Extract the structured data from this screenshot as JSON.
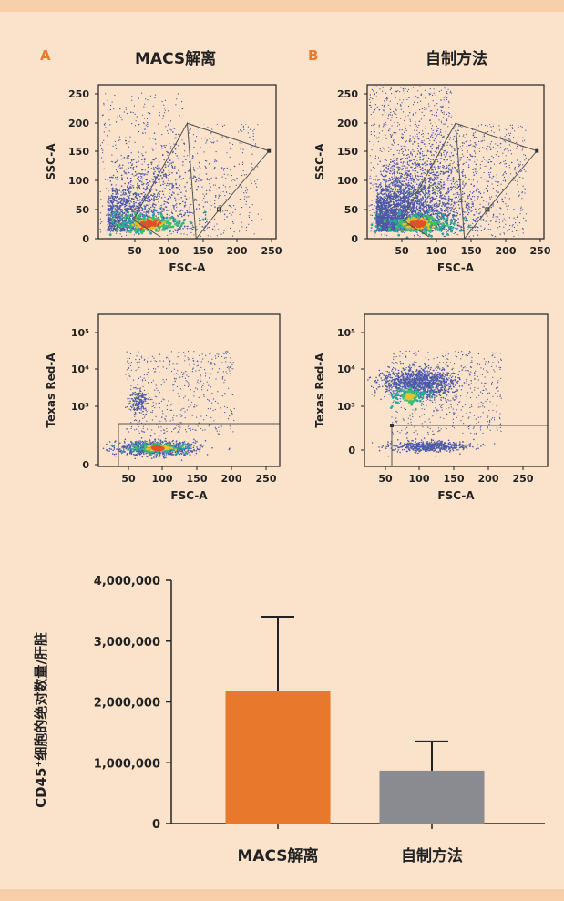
{
  "panels": {
    "a": {
      "letter": "A",
      "title": "MACS解离"
    },
    "b": {
      "letter": "B",
      "title": "自制方法"
    }
  },
  "scatter_plots": [
    {
      "id": "a-top",
      "xlabel": "FSC-A",
      "ylabel": "SSC-A",
      "xticks": [
        "50",
        "100",
        "150",
        "200",
        "250"
      ],
      "yticks": [
        "0",
        "50",
        "100",
        "150",
        "200",
        "250"
      ]
    },
    {
      "id": "b-top",
      "xlabel": "FSC-A",
      "ylabel": "SSC-A",
      "xticks": [
        "50",
        "100",
        "150",
        "200",
        "250"
      ],
      "yticks": [
        "0",
        "50",
        "100",
        "150",
        "200",
        "250"
      ]
    },
    {
      "id": "a-bottom",
      "xlabel": "FSC-A",
      "ylabel": "Texas Red-A",
      "xticks": [
        "50",
        "100",
        "150",
        "200",
        "250"
      ],
      "yticks": [
        "0",
        "10³",
        "10⁴",
        "10⁵"
      ]
    },
    {
      "id": "b-bottom",
      "xlabel": "FSC-A",
      "ylabel": "Texas Red-A",
      "xticks": [
        "50",
        "100",
        "150",
        "200",
        "250"
      ],
      "yticks": [
        "0",
        "10³",
        "10⁴",
        "10⁵"
      ]
    }
  ],
  "chart_data": [
    {
      "type": "bar",
      "categories": [
        "MACS解离",
        "自制方法"
      ],
      "values": [
        2180000,
        870000
      ],
      "error_upper": [
        3400000,
        1350000
      ],
      "colors": [
        "#e8792c",
        "#8a8b90"
      ],
      "ylabel": "CD45⁺细胞的绝对数量/肝脏",
      "ylim": [
        0,
        4000000
      ],
      "yticks": [
        "0",
        "1,000,000",
        "2,000,000",
        "3,000,000",
        "4,000,000"
      ],
      "grid": false
    }
  ]
}
